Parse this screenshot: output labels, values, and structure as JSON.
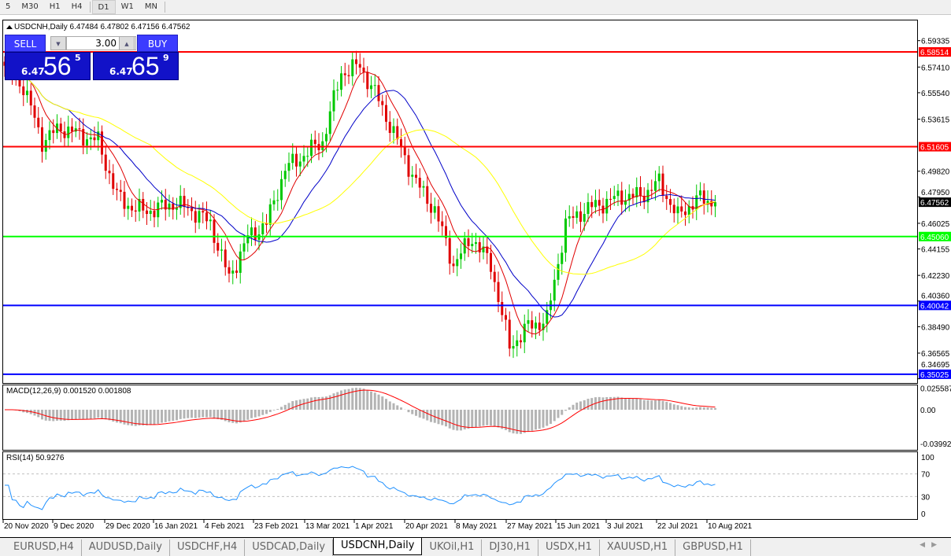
{
  "toolbar": {
    "timeframes": [
      "5",
      "M30",
      "H1",
      "H4",
      "D1",
      "W1",
      "MN"
    ],
    "active": "D1"
  },
  "chart_header": {
    "symbol": "USDCNH,Daily",
    "ohlc": "6.47484 6.47802 6.47156 6.47562"
  },
  "trade_panel": {
    "sell_label": "SELL",
    "buy_label": "BUY",
    "lot": "3.00",
    "sell_price": {
      "prefix": "6.47",
      "big": "56",
      "sup": "5"
    },
    "buy_price": {
      "prefix": "6.47",
      "big": "65",
      "sup": "9"
    }
  },
  "colors": {
    "bull": "#00c800",
    "bear": "#e00000",
    "ma_fast": "#e00000",
    "ma_mid": "#0000c8",
    "ma_slow": "#ffff00",
    "resistance": "#ff0000",
    "support_green": "#00ff00",
    "support_blue": "#0000ff"
  },
  "chart_data": {
    "type": "candlestick",
    "price_ticks": [
      "6.59335",
      "6.57410",
      "6.55540",
      "6.53615",
      "6.49820",
      "6.47950",
      "6.46025",
      "6.44155",
      "6.42230",
      "6.40360",
      "6.38490",
      "6.36565",
      "6.34695"
    ],
    "ylim": [
      6.34695,
      6.59335
    ],
    "current_price": "6.47562",
    "hlines": [
      {
        "value": "6.58514",
        "color": "#ff0000"
      },
      {
        "value": "6.51605",
        "color": "#ff0000"
      },
      {
        "value": "6.45060",
        "color": "#00ff00"
      },
      {
        "value": "6.40042",
        "color": "#0000ff"
      },
      {
        "value": "6.35025",
        "color": "#0000ff"
      }
    ],
    "weekly_closes": [
      6.575,
      6.56,
      6.52,
      6.53,
      6.525,
      6.52,
      6.48,
      6.47,
      6.47,
      6.475,
      6.47,
      6.46,
      6.42,
      6.45,
      6.46,
      6.5,
      6.51,
      6.52,
      6.57,
      6.575,
      6.55,
      6.52,
      6.49,
      6.47,
      6.43,
      6.45,
      6.43,
      6.37,
      6.385,
      6.39,
      6.46,
      6.47,
      6.475,
      6.48,
      6.48,
      6.49,
      6.465,
      6.478,
      6.4756
    ],
    "x_labels": [
      "20 Nov 2020",
      "9 Dec 2020",
      "29 Dec 2020",
      "16 Jan 2021",
      "4 Feb 2021",
      "23 Feb 2021",
      "13 Mar 2021",
      "1 Apr 2021",
      "20 Apr 2021",
      "8 May 2021",
      "27 May 2021",
      "15 Jun 2021",
      "3 Jul 2021",
      "22 Jul 2021",
      "10 Aug 2021"
    ],
    "macd": {
      "label": "MACD(12,26,9) 0.001520 0.001808",
      "ticks": [
        "0.025587",
        "0.00",
        "-0.039928"
      ]
    },
    "rsi": {
      "label": "RSI(14) 50.9276",
      "ticks": [
        "100",
        "70",
        "30",
        "0"
      ],
      "levels": [
        70,
        30
      ]
    }
  },
  "tabs": [
    "EURUSD,H4",
    "AUDUSD,Daily",
    "USDCHF,H4",
    "USDCAD,Daily",
    "USDCNH,Daily",
    "UKOil,H1",
    "DJ30,H1",
    "USDX,H1",
    "XAUUSD,H1",
    "GBPUSD,H1"
  ],
  "active_tab": "USDCNH,Daily"
}
